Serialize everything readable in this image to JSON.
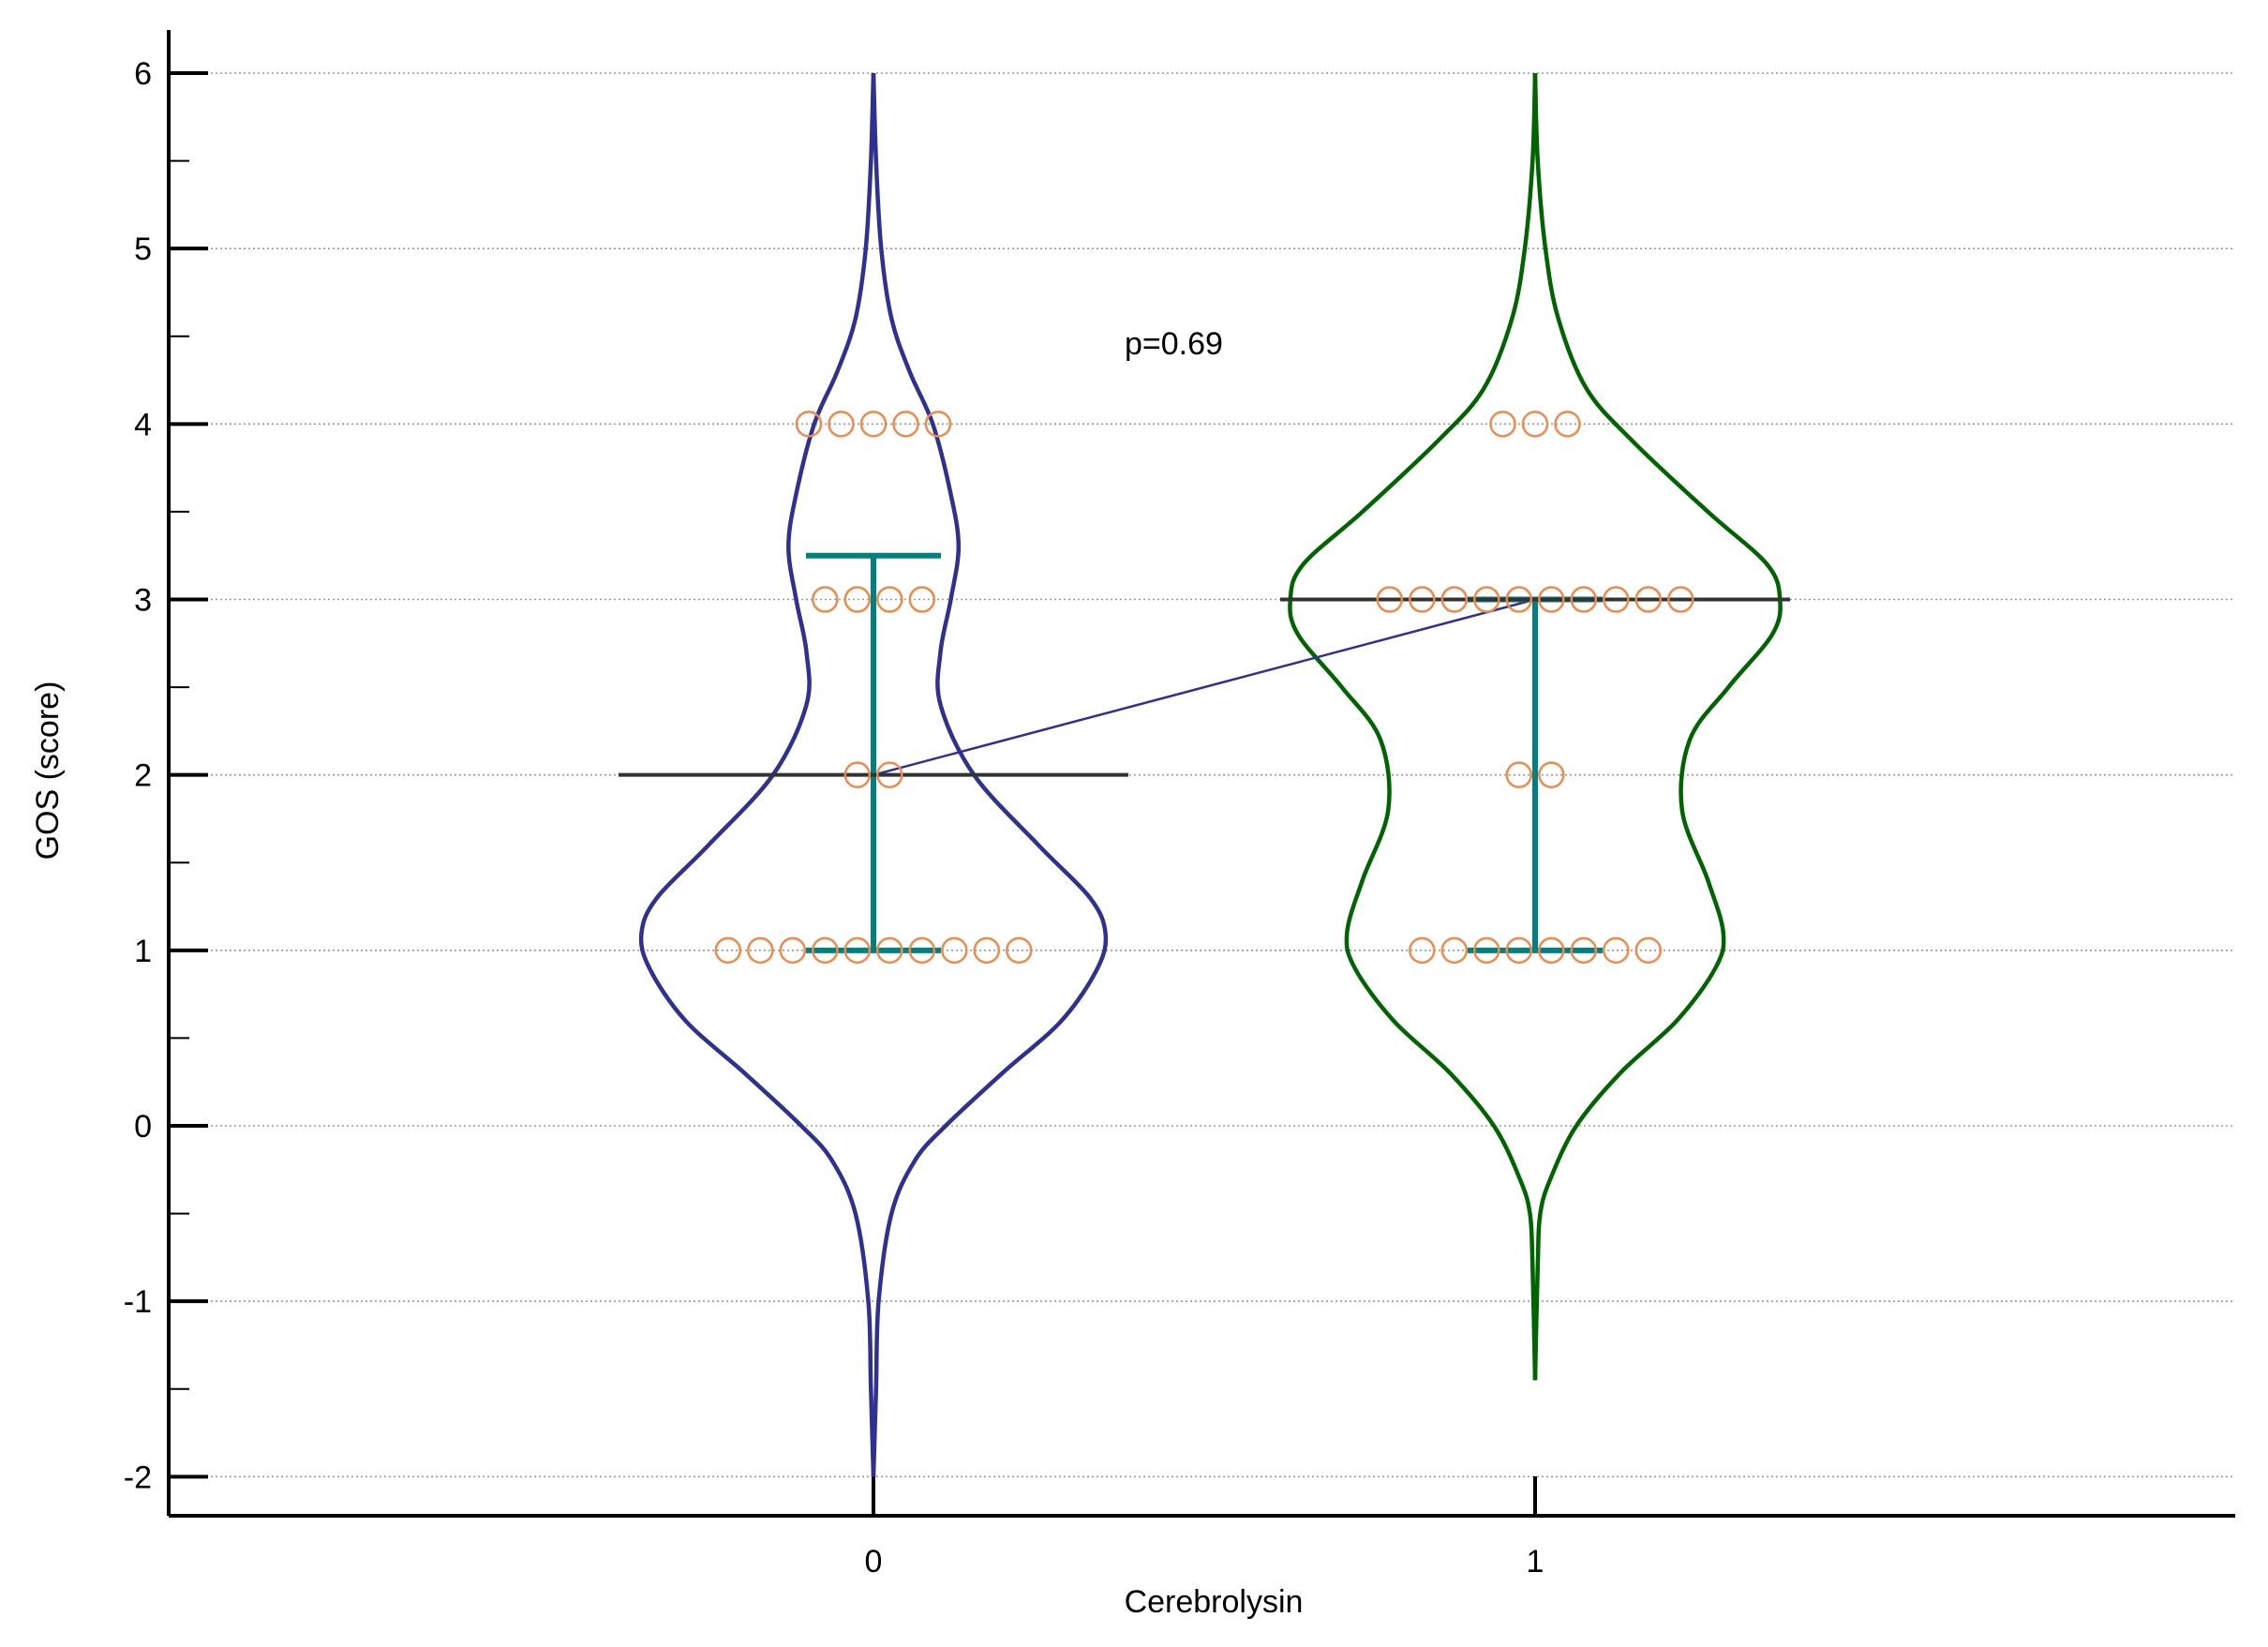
{
  "chart_data": {
    "type": "violin",
    "xlabel": "Cerebrolysin",
    "ylabel": "GOS (score)",
    "ylim": [
      -2,
      6
    ],
    "yticks": [
      -2,
      -1,
      0,
      1,
      2,
      3,
      4,
      5,
      6
    ],
    "categories": [
      "0",
      "1"
    ],
    "grid": "horizontal dotted",
    "annotation": "p=0.69",
    "colors": {
      "violin_0": "#2e3192",
      "violin_1": "#006400",
      "iqr": "#008080",
      "median": "#333333",
      "points": "#f08a4b",
      "median_link": "#2e3192"
    },
    "series": [
      {
        "category": "0",
        "median": 2,
        "q1": 1,
        "q3": 3.25,
        "violin_range": [
          -2,
          6
        ],
        "points": [
          {
            "y": 4,
            "count": 5
          },
          {
            "y": 3,
            "count": 4
          },
          {
            "y": 2,
            "count": 2
          },
          {
            "y": 1,
            "count": 10
          }
        ],
        "density_profile": [
          [
            -2.0,
            0.0
          ],
          [
            -1.5,
            0.01
          ],
          [
            -1.0,
            0.02
          ],
          [
            -0.5,
            0.07
          ],
          [
            -0.2,
            0.16
          ],
          [
            0.0,
            0.28
          ],
          [
            0.3,
            0.5
          ],
          [
            0.6,
            0.73
          ],
          [
            0.9,
            0.87
          ],
          [
            1.1,
            0.9
          ],
          [
            1.3,
            0.84
          ],
          [
            1.6,
            0.64
          ],
          [
            2.0,
            0.39
          ],
          [
            2.4,
            0.26
          ],
          [
            2.7,
            0.26
          ],
          [
            3.0,
            0.3
          ],
          [
            3.3,
            0.33
          ],
          [
            3.6,
            0.3
          ],
          [
            4.0,
            0.23
          ],
          [
            4.3,
            0.14
          ],
          [
            4.6,
            0.07
          ],
          [
            5.0,
            0.03
          ],
          [
            5.5,
            0.01
          ],
          [
            6.0,
            0.0
          ]
        ]
      },
      {
        "category": "1",
        "median": 3,
        "q1": 1,
        "q3": 3,
        "violin_range": [
          -1.45,
          6
        ],
        "points": [
          {
            "y": 4,
            "count": 3
          },
          {
            "y": 3,
            "count": 10
          },
          {
            "y": 2,
            "count": 2
          },
          {
            "y": 1,
            "count": 8
          }
        ],
        "density_profile": [
          [
            -1.45,
            0.0
          ],
          [
            -0.8,
            0.01
          ],
          [
            -0.5,
            0.02
          ],
          [
            -0.3,
            0.06
          ],
          [
            0.0,
            0.16
          ],
          [
            0.3,
            0.33
          ],
          [
            0.6,
            0.55
          ],
          [
            0.9,
            0.7
          ],
          [
            1.1,
            0.73
          ],
          [
            1.4,
            0.67
          ],
          [
            1.8,
            0.57
          ],
          [
            2.2,
            0.6
          ],
          [
            2.5,
            0.75
          ],
          [
            2.8,
            0.92
          ],
          [
            3.0,
            0.95
          ],
          [
            3.2,
            0.9
          ],
          [
            3.5,
            0.67
          ],
          [
            3.9,
            0.38
          ],
          [
            4.2,
            0.2
          ],
          [
            4.6,
            0.09
          ],
          [
            5.0,
            0.04
          ],
          [
            5.5,
            0.01
          ],
          [
            6.0,
            0.0
          ]
        ]
      }
    ]
  }
}
